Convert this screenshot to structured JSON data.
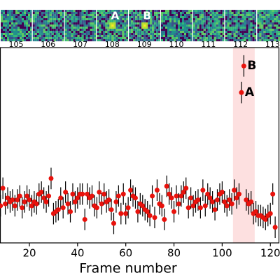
{
  "chart_data": {
    "type": "scatter",
    "xlabel": "Frame number",
    "xlim": [
      7.8,
      124
    ],
    "xticks": [
      20,
      40,
      60,
      80,
      100,
      120
    ],
    "ylim": [
      0,
      10
    ],
    "highlight": [
      104.5,
      113.5
    ],
    "highlight_color": "#fde0e0",
    "error": 0.55,
    "thumbnails": [
      {
        "label": "105"
      },
      {
        "label": "106"
      },
      {
        "label": "107"
      },
      {
        "label": "108",
        "mark": "A"
      },
      {
        "label": "109",
        "mark": "B"
      },
      {
        "label": "110"
      },
      {
        "label": "111"
      },
      {
        "label": "112"
      },
      {
        "label": "113"
      }
    ],
    "series": [
      {
        "color": "#e8120c",
        "x": [
          8,
          9,
          10,
          11,
          12,
          13,
          14,
          15,
          16,
          17,
          18,
          19,
          20,
          21,
          22,
          23,
          24,
          25,
          26,
          27,
          28,
          29,
          30,
          31,
          32,
          33,
          34,
          35,
          36,
          37,
          38,
          39,
          40,
          41,
          42,
          43,
          44,
          45,
          46,
          47,
          48,
          49,
          50,
          51,
          52,
          53,
          54,
          55,
          56,
          57,
          58,
          59,
          60,
          61,
          62,
          63,
          64,
          65,
          66,
          67,
          68,
          69,
          70,
          71,
          72,
          73,
          74,
          75,
          76,
          77,
          78,
          79,
          80,
          81,
          82,
          83,
          84,
          85,
          86,
          87,
          88,
          89,
          90,
          91,
          92,
          93,
          94,
          95,
          96,
          97,
          98,
          99,
          100,
          101,
          102,
          103,
          104,
          105,
          106,
          107,
          108,
          109,
          110,
          111,
          112,
          113,
          114,
          115,
          116,
          117,
          118,
          119,
          120,
          121,
          122
        ],
        "values": [
          1.9,
          2.8,
          2.0,
          2.3,
          2.1,
          2.2,
          1.9,
          2.2,
          2.4,
          1.8,
          2.1,
          2.4,
          2.2,
          1.9,
          2.1,
          2.0,
          2.5,
          2.6,
          2.3,
          2.1,
          2.4,
          3.3,
          1.5,
          1.6,
          1.7,
          2.3,
          1.8,
          2.6,
          2.0,
          1.6,
          2.5,
          2.1,
          2.3,
          2.5,
          2.5,
          1.2,
          2.5,
          2.3,
          2.4,
          1.9,
          1.8,
          2.6,
          2.0,
          2.5,
          2.1,
          2.2,
          1.7,
          1.0,
          2.1,
          2.4,
          1.5,
          2.5,
          1.5,
          1.8,
          2.7,
          2.4,
          2.3,
          1.6,
          2.0,
          1.9,
          1.7,
          1.6,
          1.4,
          2.4,
          1.3,
          2.7,
          2.0,
          1.9,
          1.2,
          2.9,
          2.5,
          2.3,
          1.6,
          2.4,
          2.0,
          2.4,
          2.6,
          2.8,
          1.8,
          2.3,
          1.9,
          2.1,
          2.2,
          1.8,
          2.7,
          1.9,
          2.5,
          2.3,
          2.1,
          1.7,
          2.2,
          2.5,
          2.6,
          2.1,
          1.9,
          2.2,
          2.0,
          2.7,
          2.3,
          2.5,
          7.7,
          9.06,
          2.2,
          2.0,
          2.1,
          1.5,
          1.6,
          1.4,
          1.4,
          1.3,
          1.2,
          1.4,
          1.5,
          2.5,
          0.8
        ]
      }
    ]
  }
}
